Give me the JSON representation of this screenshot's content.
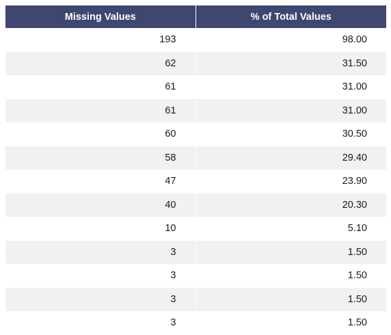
{
  "table": {
    "headers": [
      "Missing Values",
      "% of Total Values"
    ],
    "rows": [
      [
        "193",
        "98.00"
      ],
      [
        "62",
        "31.50"
      ],
      [
        "61",
        "31.00"
      ],
      [
        "61",
        "31.00"
      ],
      [
        "60",
        "30.50"
      ],
      [
        "58",
        "29.40"
      ],
      [
        "47",
        "23.90"
      ],
      [
        "40",
        "20.30"
      ],
      [
        "10",
        "5.10"
      ],
      [
        "3",
        "1.50"
      ],
      [
        "3",
        "1.50"
      ],
      [
        "3",
        "1.50"
      ],
      [
        "3",
        "1.50"
      ]
    ]
  },
  "colors": {
    "header_bg": "#3f4670",
    "header_text": "#ffffff",
    "stripe_bg": "#f1f1f1"
  }
}
